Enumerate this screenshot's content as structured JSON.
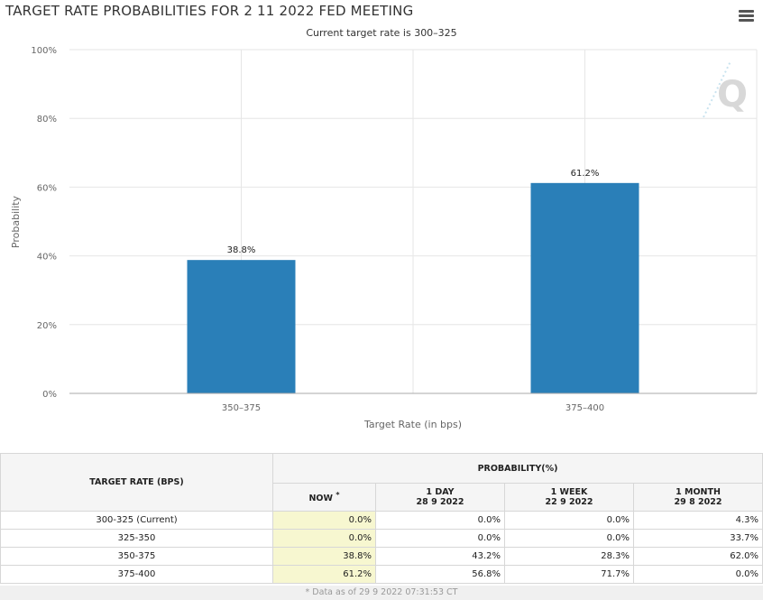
{
  "header": {
    "title": "TARGET RATE PROBABILITIES FOR 2 11 2022 FED MEETING",
    "subtitle": "Current target rate is 300–325",
    "menu_icon": "hamburger-menu-icon",
    "watermark_icon": "quikstrike-logo-icon"
  },
  "chart_data": {
    "type": "bar",
    "categories": [
      "350–375",
      "375–400"
    ],
    "values": [
      38.8,
      61.2
    ],
    "data_labels": [
      "38.8%",
      "61.2%"
    ],
    "xlabel": "Target Rate (in bps)",
    "ylabel": "Probability",
    "ylim": [
      0,
      100
    ],
    "yticks": [
      "0%",
      "20%",
      "40%",
      "60%",
      "80%",
      "100%"
    ],
    "grid": true,
    "bar_color": "#2a7fb8"
  },
  "table": {
    "col_rate": "TARGET RATE (BPS)",
    "col_probability": "PROBABILITY(%)",
    "sub_now": "NOW",
    "sub_now_mark": "*",
    "sub_1day": "1 DAY",
    "sub_1day_date": "28 9 2022",
    "sub_1week": "1 WEEK",
    "sub_1week_date": "22 9 2022",
    "sub_1month": "1 MONTH",
    "sub_1month_date": "29 8 2022",
    "rows": [
      {
        "rate": "300-325 (Current)",
        "now": "0.0%",
        "day": "0.0%",
        "week": "0.0%",
        "month": "4.3%"
      },
      {
        "rate": "325-350",
        "now": "0.0%",
        "day": "0.0%",
        "week": "0.0%",
        "month": "33.7%"
      },
      {
        "rate": "350-375",
        "now": "38.8%",
        "day": "43.2%",
        "week": "28.3%",
        "month": "62.0%"
      },
      {
        "rate": "375-400",
        "now": "61.2%",
        "day": "56.8%",
        "week": "71.7%",
        "month": "0.0%"
      }
    ],
    "now_highlight": "#f7f7d0"
  },
  "footnote": "* Data as of 29 9 2022 07:31:53 CT"
}
